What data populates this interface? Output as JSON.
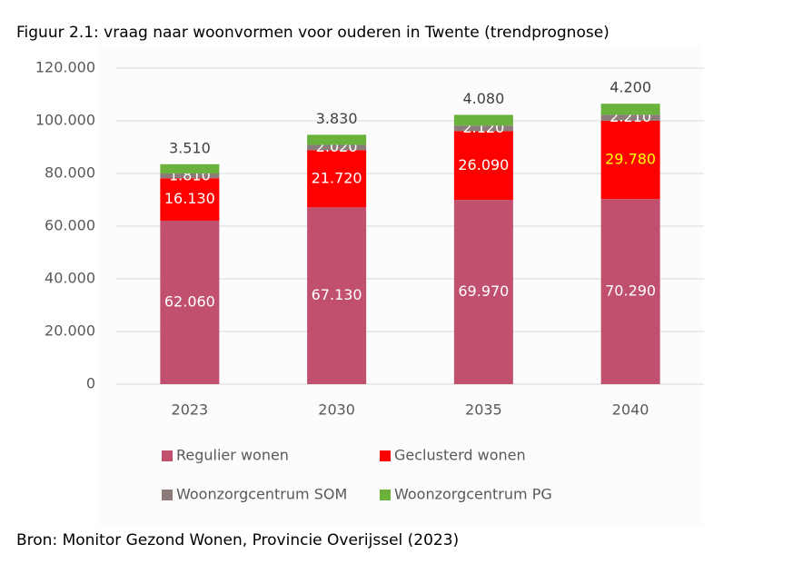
{
  "chart_data": {
    "type": "stacked_bar",
    "title": "Figuur 2.1: vraag naar woonvormen voor ouderen in Twente (trendprognose)",
    "source": "Bron: Monitor Gezond Wonen, Provincie Overijssel (2023)",
    "categories": [
      "2023",
      "2030",
      "2035",
      "2040"
    ],
    "series": [
      {
        "name": "Regulier wonen",
        "color": "#c0506e",
        "values": [
          62060,
          67130,
          69970,
          70290
        ],
        "value_labels": [
          "62.060",
          "67.130",
          "69.970",
          "70.290"
        ],
        "label_colors": [
          "#ffffff",
          "#ffffff",
          "#ffffff",
          "#ffffff"
        ]
      },
      {
        "name": "Geclusterd wonen",
        "color": "#ff0000",
        "values": [
          16130,
          21720,
          26090,
          29780
        ],
        "value_labels": [
          "16.130",
          "21.720",
          "26.090",
          "29.780"
        ],
        "label_colors": [
          "#ffffff",
          "#ffffff",
          "#ffffff",
          "#ffff00"
        ]
      },
      {
        "name": "Woonzorgcentrum SOM",
        "color": "#8c7b78",
        "values": [
          1810,
          2020,
          2120,
          2210
        ],
        "value_labels": [
          "1.810",
          "2.020",
          "2.120",
          "2.210"
        ],
        "label_colors": [
          "#ffffff",
          "#ffffff",
          "#ffffff",
          "#ffffff"
        ]
      },
      {
        "name": "Woonzorgcentrum PG",
        "color": "#6ab23c",
        "values": [
          3510,
          3830,
          4080,
          4200
        ],
        "value_labels": [
          "3.510",
          "3.830",
          "4.080",
          "4.200"
        ],
        "label_colors": [
          "#404040",
          "#404040",
          "#404040",
          "#404040"
        ]
      }
    ],
    "ylim": [
      0,
      120000
    ],
    "yticks": [
      0,
      {
        "value": 20000,
        "label": "20.000"
      },
      {
        "value": 40000,
        "label": "40.000"
      },
      {
        "value": 60000,
        "label": "60.000"
      },
      {
        "value": 80000,
        "label": "80.000"
      },
      {
        "value": 100000,
        "label": "100.000"
      },
      {
        "value": 120000,
        "label": "120.000"
      }
    ],
    "grid": true
  }
}
